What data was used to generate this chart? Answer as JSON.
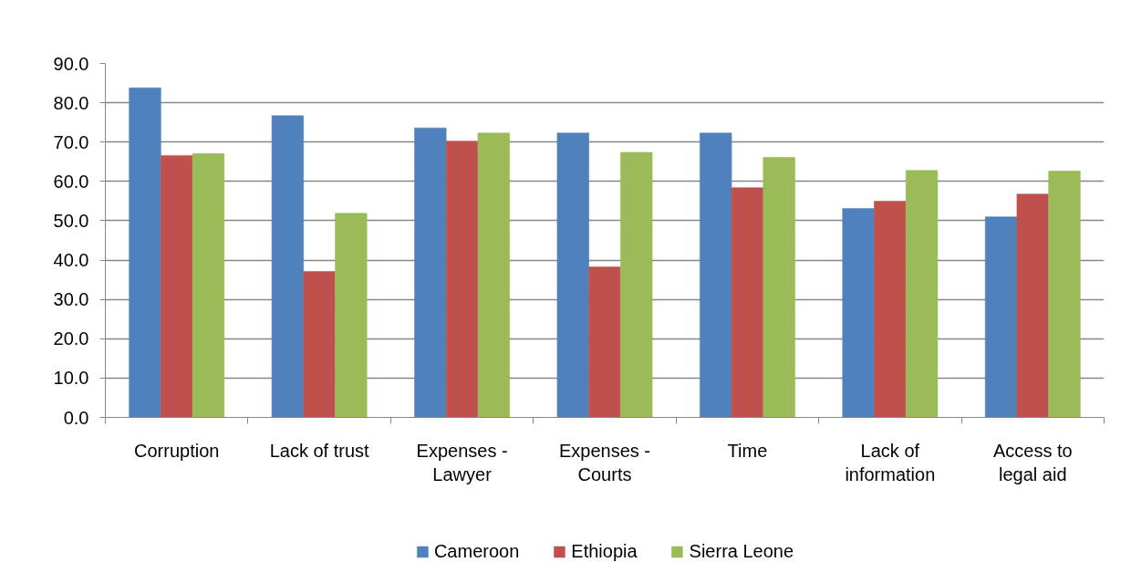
{
  "chart_data": {
    "type": "bar",
    "categories": [
      "Corruption",
      "Lack of trust",
      "Expenses - Lawyer",
      "Expenses - Courts",
      "Time",
      "Lack of information",
      "Access to legal aid"
    ],
    "series": [
      {
        "name": "Cameroon",
        "color": "#4f81bd",
        "values": [
          83.8,
          76.7,
          73.6,
          72.3,
          72.3,
          53.1,
          51.0
        ]
      },
      {
        "name": "Ethiopia",
        "color": "#c0504d",
        "values": [
          66.6,
          37.1,
          70.2,
          38.3,
          58.4,
          55.0,
          56.8
        ]
      },
      {
        "name": "Sierra Leone",
        "color": "#9bbb59",
        "values": [
          67.1,
          51.9,
          72.3,
          67.4,
          66.1,
          62.8,
          62.6
        ]
      }
    ],
    "ylim": [
      0,
      90
    ],
    "yticks": [
      {
        "value": 0,
        "label": "0.0"
      },
      {
        "value": 10,
        "label": "10.0"
      },
      {
        "value": 20,
        "label": "20.0"
      },
      {
        "value": 30,
        "label": "30.0"
      },
      {
        "value": 40,
        "label": "40.0"
      },
      {
        "value": 50,
        "label": "50.0"
      },
      {
        "value": 60,
        "label": "60.0"
      },
      {
        "value": 70,
        "label": "70.0"
      },
      {
        "value": 80,
        "label": "80.0"
      },
      {
        "value": 90,
        "label": "90.0"
      }
    ],
    "grid": "y",
    "legend": "bottom"
  }
}
